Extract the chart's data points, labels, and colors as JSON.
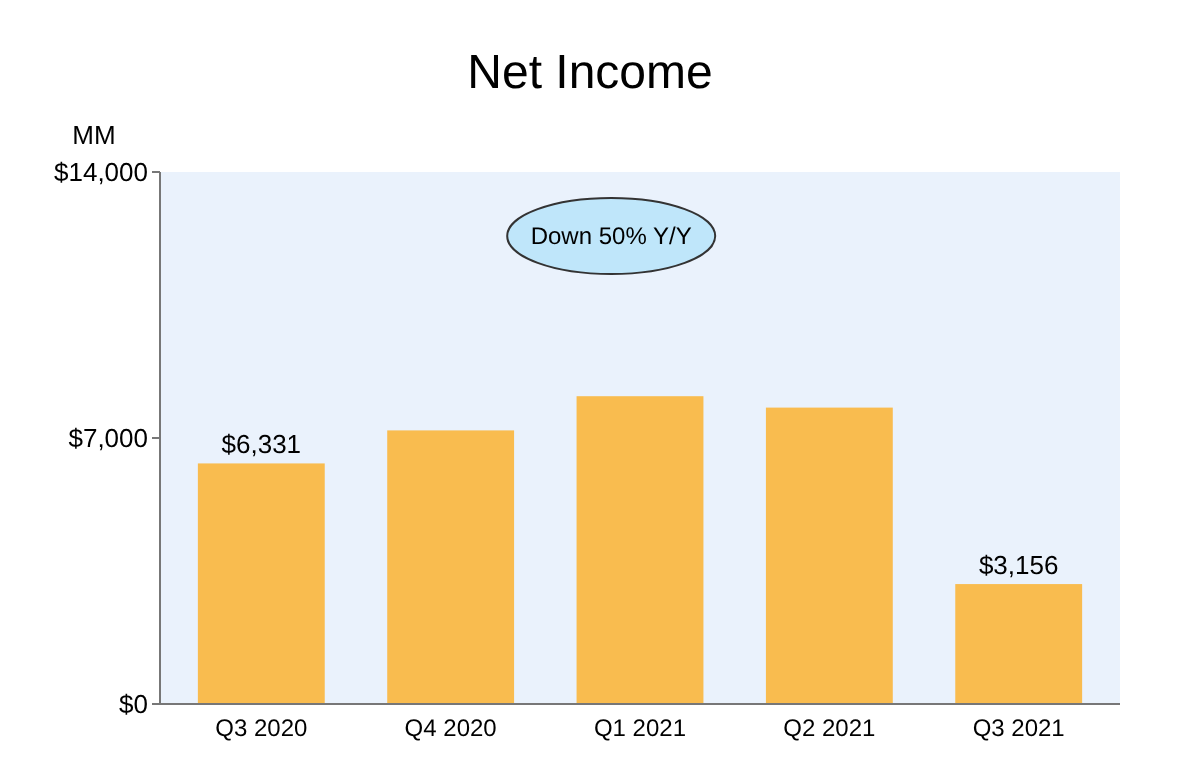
{
  "chart_data": {
    "type": "bar",
    "title": "Net Income",
    "ylabel": "MM",
    "categories": [
      "Q3 2020",
      "Q4 2020",
      "Q1 2021",
      "Q2 2021",
      "Q3 2021"
    ],
    "values": [
      6331,
      7200,
      8100,
      7800,
      3156
    ],
    "value_labels": [
      "$6,331",
      null,
      null,
      null,
      "$3,156"
    ],
    "color": "#f9bc4f",
    "ylim": [
      0,
      14000
    ],
    "yticks": [
      {
        "value": 0,
        "label": "$0"
      },
      {
        "value": 7000,
        "label": "$7,000"
      },
      {
        "value": 14000,
        "label": "$14,000"
      }
    ],
    "annotations": [
      "Down 50% Y/Y"
    ],
    "grid": false
  }
}
